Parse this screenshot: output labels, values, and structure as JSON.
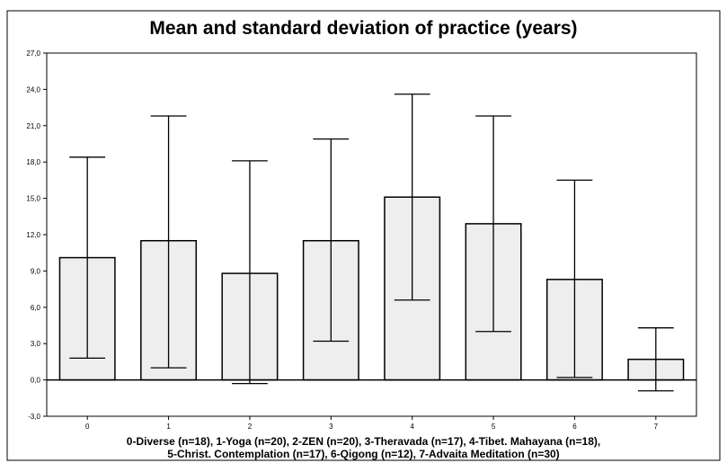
{
  "chart_data": {
    "type": "bar",
    "title": "Mean and standard deviation of practice (years)",
    "xlabel": "",
    "ylabel": "",
    "categories": [
      "0",
      "1",
      "2",
      "3",
      "4",
      "5",
      "6",
      "7"
    ],
    "series": [
      {
        "values": [
          10.1,
          11.5,
          8.8,
          11.5,
          15.1,
          12.9,
          8.3,
          1.7
        ],
        "error_low": [
          1.8,
          1.0,
          -0.3,
          3.2,
          6.6,
          4.0,
          0.2,
          -0.9
        ],
        "error_high": [
          18.4,
          21.8,
          18.1,
          19.9,
          23.6,
          21.8,
          16.5,
          4.3
        ]
      }
    ],
    "ylim": [
      -3.0,
      27.0
    ],
    "yticks": [
      "-3,0",
      "0,0",
      "3,0",
      "6,0",
      "9,0",
      "12,0",
      "15,0",
      "18,0",
      "21,0",
      "24,0",
      "27,0"
    ],
    "ytick_values": [
      -3,
      0,
      3,
      6,
      9,
      12,
      15,
      18,
      21,
      24,
      27
    ],
    "grid": false,
    "bar_color": "#eeeeee",
    "caption_lines": [
      "0-Diverse (n=18), 1-Yoga (n=20), 2-ZEN (n=20), 3-Theravada (n=17), 4-Tibet. Mahayana (n=18),",
      "5-Christ. Contemplation (n=17), 6-Qigong (n=12), 7-Advaita Meditation (n=30)"
    ]
  }
}
